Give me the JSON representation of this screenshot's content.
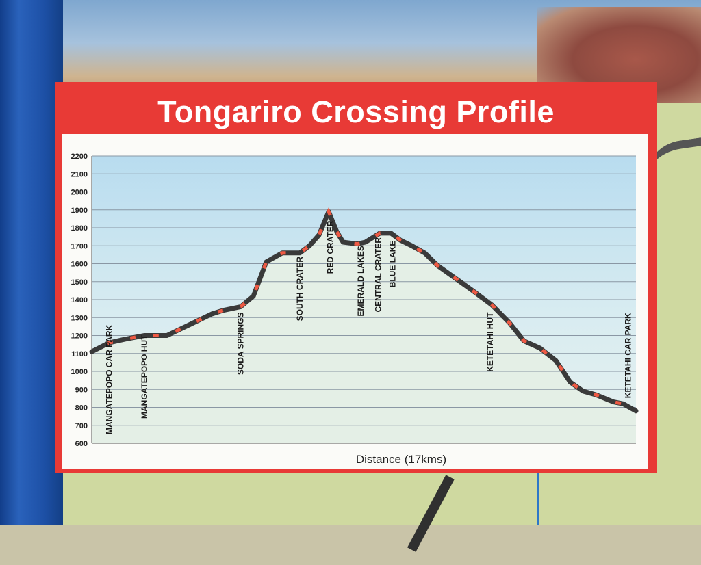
{
  "sign": {
    "title": "Tongariro Crossing Profile"
  },
  "chart_data": {
    "type": "line",
    "title": "Tongariro Crossing Profile",
    "xlabel": "Distance (17kms)",
    "ylabel": "",
    "ylim": [
      600,
      2200
    ],
    "yticks": [
      600,
      700,
      800,
      900,
      1000,
      1100,
      1200,
      1300,
      1400,
      1500,
      1600,
      1700,
      1800,
      1900,
      2000,
      2100,
      2200
    ],
    "xlim": [
      0,
      17
    ],
    "grid": true,
    "x": [
      0,
      0.55,
      1.05,
      1.65,
      2.35,
      3.05,
      3.75,
      4.1,
      4.65,
      5.05,
      5.45,
      5.95,
      6.3,
      6.5,
      6.8,
      7.1,
      7.4,
      7.65,
      7.85,
      8.3,
      8.55,
      9.0,
      9.35,
      9.65,
      10.0,
      10.4,
      10.8,
      11.35,
      11.9,
      12.5,
      13.05,
      13.5,
      14.0,
      14.5,
      14.95,
      15.35,
      15.75,
      16.3,
      16.6,
      17.0
    ],
    "values": [
      1110,
      1160,
      1180,
      1200,
      1200,
      1260,
      1320,
      1340,
      1360,
      1420,
      1610,
      1660,
      1660,
      1660,
      1700,
      1760,
      1890,
      1780,
      1720,
      1710,
      1720,
      1770,
      1770,
      1730,
      1700,
      1660,
      1590,
      1520,
      1450,
      1370,
      1270,
      1170,
      1130,
      1060,
      940,
      890,
      870,
      830,
      820,
      780
    ],
    "annotations": [
      {
        "label": "MANGATEPOPO CAR PARK",
        "x": 0.55
      },
      {
        "label": "MANGATEPOPO HUT",
        "x": 1.65
      },
      {
        "label": "SODA SPRINGS",
        "x": 4.65
      },
      {
        "label": "SOUTH CRATER",
        "x": 6.5
      },
      {
        "label": "RED CRATER",
        "x": 7.45
      },
      {
        "label": "EMERALD LAKES",
        "x": 8.4
      },
      {
        "label": "CENTRAL CRATER",
        "x": 8.95
      },
      {
        "label": "BLUE LAKE",
        "x": 9.4
      },
      {
        "label": "KETETAHI HUT",
        "x": 12.45
      },
      {
        "label": "KETETAHI CAR PARK",
        "x": 16.75
      }
    ]
  }
}
